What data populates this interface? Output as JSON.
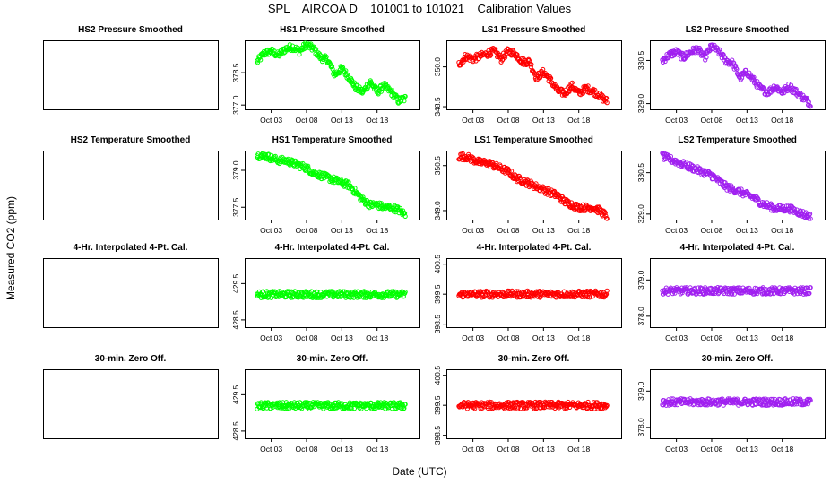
{
  "figure": {
    "title": "SPL    AIRCOA D    101001 to 101021    Calibration Values",
    "xlabel": "Date (UTC)",
    "ylabel": "Measured CO2 (ppm)"
  },
  "chart_data": [
    {
      "type": "scatter",
      "title": "HS2 Pressure Smoothed",
      "empty": true,
      "series": []
    },
    {
      "type": "scatter",
      "title": "HS1 Pressure Smoothed",
      "color": "#00ff00",
      "ylim": [
        376.8,
        380.0
      ],
      "yticks": [
        "377.0",
        "378.5"
      ],
      "ytick_values": [
        377.0,
        378.5
      ],
      "xticks": [
        "Oct 03",
        "Oct 08",
        "Oct 13",
        "Oct 18"
      ],
      "xtick_days": [
        3,
        8,
        13,
        18
      ],
      "xlim": [
        0,
        23.5
      ],
      "series": [
        {
          "name": "HS1",
          "x": [
            1,
            2,
            3,
            4,
            5,
            6,
            7,
            8,
            9,
            10,
            11,
            12,
            13,
            14,
            15,
            16,
            17,
            18,
            19,
            20,
            21,
            22
          ],
          "y": [
            379.0,
            379.4,
            379.5,
            379.3,
            379.6,
            379.7,
            379.5,
            379.8,
            379.6,
            379.2,
            379.1,
            378.4,
            378.7,
            378.3,
            377.8,
            377.6,
            378.1,
            377.6,
            377.9,
            377.6,
            377.2,
            377.3
          ]
        }
      ]
    },
    {
      "type": "scatter",
      "title": "LS1 Pressure Smoothed",
      "color": "#ff0000",
      "ylim": [
        348.4,
        351.0
      ],
      "yticks": [
        "348.5",
        "350.0"
      ],
      "ytick_values": [
        348.5,
        350.0
      ],
      "xticks": [
        "Oct 03",
        "Oct 08",
        "Oct 13",
        "Oct 18"
      ],
      "xtick_days": [
        3,
        8,
        13,
        18
      ],
      "xlim": [
        0,
        23.5
      ],
      "series": [
        {
          "name": "LS1",
          "x": [
            1,
            2,
            3,
            4,
            5,
            6,
            7,
            8,
            9,
            10,
            11,
            12,
            13,
            14,
            15,
            16,
            17,
            18,
            19,
            20,
            21,
            22
          ],
          "y": [
            350.1,
            350.4,
            350.3,
            350.4,
            350.5,
            350.6,
            350.3,
            350.6,
            350.5,
            350.2,
            350.2,
            349.6,
            349.8,
            349.5,
            349.1,
            349.0,
            349.3,
            349.0,
            349.2,
            349.1,
            348.9,
            348.7
          ]
        }
      ]
    },
    {
      "type": "scatter",
      "title": "LS2 Pressure Smoothed",
      "color": "#a020f0",
      "ylim": [
        328.8,
        331.2
      ],
      "yticks": [
        "329.0",
        "330.5"
      ],
      "ytick_values": [
        329.0,
        330.5
      ],
      "xticks": [
        "Oct 03",
        "Oct 08",
        "Oct 13",
        "Oct 18"
      ],
      "xtick_days": [
        3,
        8,
        13,
        18
      ],
      "xlim": [
        0,
        23.5
      ],
      "series": [
        {
          "name": "LS2",
          "x": [
            1,
            2,
            3,
            4,
            5,
            6,
            7,
            8,
            9,
            10,
            11,
            12,
            13,
            14,
            15,
            16,
            17,
            18,
            19,
            20,
            21,
            22
          ],
          "y": [
            330.5,
            330.7,
            330.8,
            330.6,
            330.8,
            330.9,
            330.6,
            331.0,
            330.8,
            330.5,
            330.4,
            329.9,
            330.1,
            329.8,
            329.5,
            329.4,
            329.6,
            329.4,
            329.6,
            329.4,
            329.2,
            329.0
          ]
        }
      ]
    },
    {
      "type": "scatter",
      "title": "HS2 Temperature Smoothed",
      "empty": true,
      "series": []
    },
    {
      "type": "scatter",
      "title": "HS1 Temperature Smoothed",
      "color": "#00ff00",
      "ylim": [
        377.0,
        379.8
      ],
      "yticks": [
        "377.5",
        "379.0"
      ],
      "ytick_values": [
        377.5,
        379.0
      ],
      "xticks": [
        "Oct 03",
        "Oct 08",
        "Oct 13",
        "Oct 18"
      ],
      "xtick_days": [
        3,
        8,
        13,
        18
      ],
      "xlim": [
        0,
        23.5
      ],
      "series": [
        {
          "name": "HS1",
          "x": [
            1,
            2,
            3,
            4,
            5,
            6,
            7,
            8,
            9,
            10,
            11,
            12,
            13,
            14,
            15,
            16,
            17,
            18,
            19,
            20,
            21,
            22
          ],
          "y": [
            379.6,
            379.6,
            379.5,
            379.4,
            379.4,
            379.3,
            379.2,
            379.1,
            378.9,
            378.8,
            378.7,
            378.6,
            378.5,
            378.4,
            378.1,
            377.8,
            377.6,
            377.6,
            377.5,
            377.5,
            377.4,
            377.2
          ]
        }
      ]
    },
    {
      "type": "scatter",
      "title": "LS1 Temperature Smoothed",
      "color": "#ff0000",
      "ylim": [
        348.7,
        351.0
      ],
      "yticks": [
        "349.0",
        "350.5"
      ],
      "ytick_values": [
        349.0,
        350.5
      ],
      "xticks": [
        "Oct 03",
        "Oct 08",
        "Oct 13",
        "Oct 18"
      ],
      "xtick_days": [
        3,
        8,
        13,
        18
      ],
      "xlim": [
        0,
        23.5
      ],
      "series": [
        {
          "name": "LS1",
          "x": [
            1,
            2,
            3,
            4,
            5,
            6,
            7,
            8,
            9,
            10,
            11,
            12,
            13,
            14,
            15,
            16,
            17,
            18,
            19,
            20,
            21,
            22
          ],
          "y": [
            350.8,
            350.8,
            350.7,
            350.6,
            350.6,
            350.5,
            350.4,
            350.3,
            350.1,
            350.0,
            349.9,
            349.8,
            349.7,
            349.6,
            349.5,
            349.3,
            349.2,
            349.1,
            349.1,
            349.1,
            349.0,
            348.8
          ]
        }
      ]
    },
    {
      "type": "scatter",
      "title": "LS2 Temperature Smoothed",
      "color": "#a020f0",
      "ylim": [
        328.8,
        331.3
      ],
      "yticks": [
        "329.0",
        "330.5"
      ],
      "ytick_values": [
        329.0,
        330.5
      ],
      "xticks": [
        "Oct 03",
        "Oct 08",
        "Oct 13",
        "Oct 18"
      ],
      "xtick_days": [
        3,
        8,
        13,
        18
      ],
      "xlim": [
        0,
        23.5
      ],
      "series": [
        {
          "name": "LS2",
          "x": [
            1,
            2,
            3,
            4,
            5,
            6,
            7,
            8,
            9,
            10,
            11,
            12,
            13,
            14,
            15,
            16,
            17,
            18,
            19,
            20,
            21,
            22
          ],
          "y": [
            331.1,
            331.0,
            330.9,
            330.8,
            330.7,
            330.6,
            330.5,
            330.4,
            330.2,
            330.0,
            329.9,
            329.8,
            329.7,
            329.6,
            329.4,
            329.3,
            329.2,
            329.2,
            329.2,
            329.1,
            329.0,
            328.9
          ]
        }
      ]
    },
    {
      "type": "scatter",
      "title": "4-Hr. Interpolated 4-Pt. Cal.",
      "empty": true,
      "series": []
    },
    {
      "type": "scatter",
      "title": "4-Hr. Interpolated 4-Pt. Cal.",
      "color": "#00ff00",
      "ylim": [
        428.3,
        430.2
      ],
      "yticks": [
        "428.5",
        "429.5"
      ],
      "ytick_values": [
        428.5,
        429.5
      ],
      "xticks": [
        "Oct 03",
        "Oct 08",
        "Oct 13",
        "Oct 18"
      ],
      "xtick_days": [
        3,
        8,
        13,
        18
      ],
      "xlim": [
        0,
        23.5
      ],
      "series": [
        {
          "name": "HS1",
          "x": [
            1,
            2,
            3,
            4,
            5,
            6,
            7,
            8,
            9,
            10,
            11,
            12,
            13,
            14,
            15,
            16,
            17,
            18,
            19,
            20,
            21,
            22
          ],
          "y": [
            429.2,
            429.2,
            429.2,
            429.2,
            429.2,
            429.2,
            429.2,
            429.2,
            429.2,
            429.2,
            429.2,
            429.2,
            429.2,
            429.2,
            429.2,
            429.2,
            429.2,
            429.2,
            429.2,
            429.2,
            429.2,
            429.2
          ]
        }
      ]
    },
    {
      "type": "scatter",
      "title": "4-Hr. Interpolated 4-Pt. Cal.",
      "color": "#ff0000",
      "ylim": [
        398.4,
        400.7
      ],
      "yticks": [
        "398.5",
        "399.5",
        "400.5"
      ],
      "ytick_values": [
        398.5,
        399.5,
        400.5
      ],
      "xticks": [
        "Oct 03",
        "Oct 08",
        "Oct 13",
        "Oct 18"
      ],
      "xtick_days": [
        3,
        8,
        13,
        18
      ],
      "xlim": [
        0,
        23.5
      ],
      "series": [
        {
          "name": "LS1",
          "x": [
            1,
            2,
            3,
            4,
            5,
            6,
            7,
            8,
            9,
            10,
            11,
            12,
            13,
            14,
            15,
            16,
            17,
            18,
            19,
            20,
            21,
            22
          ],
          "y": [
            399.5,
            399.5,
            399.5,
            399.5,
            399.5,
            399.5,
            399.5,
            399.5,
            399.5,
            399.5,
            399.5,
            399.5,
            399.5,
            399.5,
            399.5,
            399.5,
            399.5,
            399.5,
            399.5,
            399.5,
            399.5,
            399.5
          ]
        }
      ]
    },
    {
      "type": "scatter",
      "title": "4-Hr. Interpolated 4-Pt. Cal.",
      "color": "#a020f0",
      "ylim": [
        377.7,
        379.6
      ],
      "yticks": [
        "378.0",
        "379.0"
      ],
      "ytick_values": [
        378.0,
        379.0
      ],
      "xticks": [
        "Oct 03",
        "Oct 08",
        "Oct 13",
        "Oct 18"
      ],
      "xtick_days": [
        3,
        8,
        13,
        18
      ],
      "xlim": [
        0,
        23.5
      ],
      "series": [
        {
          "name": "LS2",
          "x": [
            1,
            2,
            3,
            4,
            5,
            6,
            7,
            8,
            9,
            10,
            11,
            12,
            13,
            14,
            15,
            16,
            17,
            18,
            19,
            20,
            21,
            22
          ],
          "y": [
            378.7,
            378.7,
            378.7,
            378.7,
            378.7,
            378.7,
            378.7,
            378.7,
            378.7,
            378.7,
            378.7,
            378.7,
            378.7,
            378.7,
            378.7,
            378.7,
            378.7,
            378.7,
            378.7,
            378.7,
            378.7,
            378.7
          ]
        }
      ]
    },
    {
      "type": "scatter",
      "title": "30-min. Zero Off.",
      "empty": true,
      "series": []
    },
    {
      "type": "scatter",
      "title": "30-min. Zero Off.",
      "color": "#00ff00",
      "ylim": [
        428.3,
        430.2
      ],
      "yticks": [
        "428.5",
        "429.5"
      ],
      "ytick_values": [
        428.5,
        429.5
      ],
      "xticks": [
        "Oct 03",
        "Oct 08",
        "Oct 13",
        "Oct 18"
      ],
      "xtick_days": [
        3,
        8,
        13,
        18
      ],
      "xlim": [
        0,
        23.5
      ],
      "series": [
        {
          "name": "HS1",
          "x": [
            1,
            2,
            3,
            4,
            5,
            6,
            7,
            8,
            9,
            10,
            11,
            12,
            13,
            14,
            15,
            16,
            17,
            18,
            19,
            20,
            21,
            22
          ],
          "y": [
            429.2,
            429.2,
            429.2,
            429.2,
            429.2,
            429.2,
            429.2,
            429.2,
            429.2,
            429.2,
            429.2,
            429.2,
            429.2,
            429.2,
            429.2,
            429.2,
            429.2,
            429.2,
            429.2,
            429.2,
            429.2,
            429.2
          ]
        }
      ]
    },
    {
      "type": "scatter",
      "title": "30-min. Zero Off.",
      "color": "#ff0000",
      "ylim": [
        398.4,
        400.7
      ],
      "yticks": [
        "398.5",
        "399.5",
        "400.5"
      ],
      "ytick_values": [
        398.5,
        399.5,
        400.5
      ],
      "xticks": [
        "Oct 03",
        "Oct 08",
        "Oct 13",
        "Oct 18"
      ],
      "xtick_days": [
        3,
        8,
        13,
        18
      ],
      "xlim": [
        0,
        23.5
      ],
      "series": [
        {
          "name": "LS1",
          "x": [
            1,
            2,
            3,
            4,
            5,
            6,
            7,
            8,
            9,
            10,
            11,
            12,
            13,
            14,
            15,
            16,
            17,
            18,
            19,
            20,
            21,
            22
          ],
          "y": [
            399.5,
            399.5,
            399.5,
            399.5,
            399.5,
            399.5,
            399.5,
            399.5,
            399.5,
            399.5,
            399.5,
            399.5,
            399.5,
            399.5,
            399.5,
            399.5,
            399.5,
            399.5,
            399.5,
            399.5,
            399.5,
            399.5
          ]
        }
      ]
    },
    {
      "type": "scatter",
      "title": "30-min. Zero Off.",
      "color": "#a020f0",
      "ylim": [
        377.7,
        379.6
      ],
      "yticks": [
        "378.0",
        "379.0"
      ],
      "ytick_values": [
        378.0,
        379.0
      ],
      "xticks": [
        "Oct 03",
        "Oct 08",
        "Oct 13",
        "Oct 18"
      ],
      "xtick_days": [
        3,
        8,
        13,
        18
      ],
      "xlim": [
        0,
        23.5
      ],
      "series": [
        {
          "name": "LS2",
          "x": [
            1,
            2,
            3,
            4,
            5,
            6,
            7,
            8,
            9,
            10,
            11,
            12,
            13,
            14,
            15,
            16,
            17,
            18,
            19,
            20,
            21,
            22
          ],
          "y": [
            378.7,
            378.7,
            378.7,
            378.7,
            378.7,
            378.7,
            378.7,
            378.7,
            378.7,
            378.7,
            378.7,
            378.7,
            378.7,
            378.7,
            378.7,
            378.7,
            378.7,
            378.7,
            378.7,
            378.7,
            378.7,
            378.7
          ]
        }
      ]
    }
  ]
}
